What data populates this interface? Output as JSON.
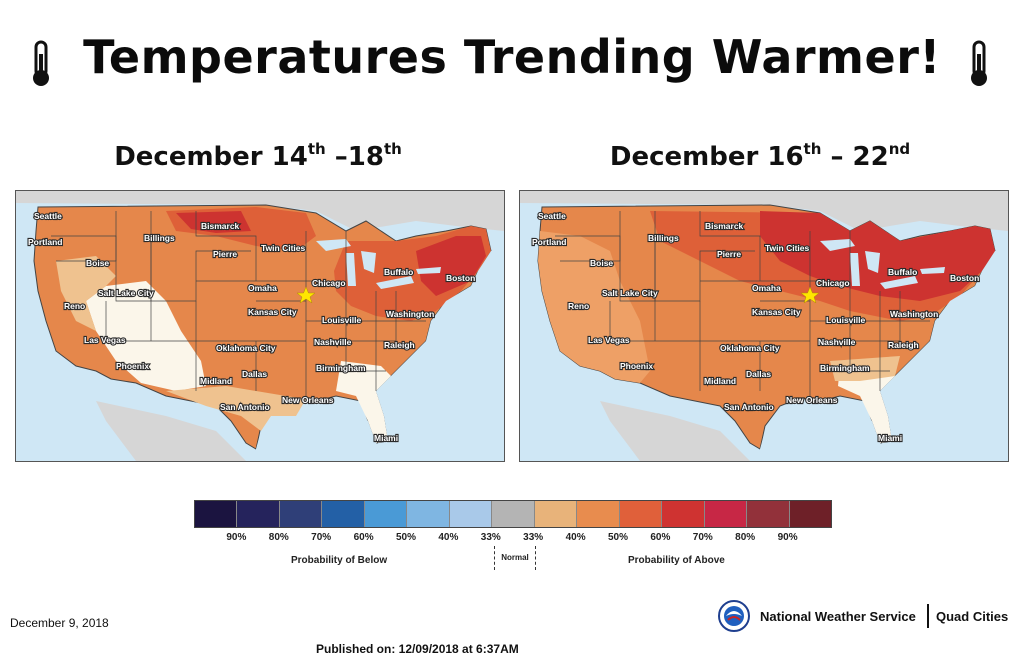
{
  "title": "Temperatures Trending Warmer!",
  "maps": [
    {
      "title_a": "December 14",
      "sup_a": "th",
      "title_b": " –18",
      "sup_b": "th"
    },
    {
      "title_a": "December 16",
      "sup_a": "th",
      "title_b": " – 22",
      "sup_b": "nd"
    }
  ],
  "cities": {
    "seattle": "Seattle",
    "portland": "Portland",
    "boise": "Boise",
    "reno": "Reno",
    "saltlake": "Salt Lake City",
    "lasvegas": "Las Vegas",
    "phoenix": "Phoenix",
    "billings": "Billings",
    "bismarck": "Bismarck",
    "pierre": "Pierre",
    "twincities": "Twin Cities",
    "omaha": "Omaha",
    "chicago": "Chicago",
    "kansascity": "Kansas City",
    "louisville": "Louisville",
    "nashville": "Nashville",
    "okc": "Oklahoma City",
    "dallas": "Dallas",
    "midland": "Midland",
    "sanantonio": "San Antonio",
    "neworleans": "New Orleans",
    "birmingham": "Birmingham",
    "miami": "Miami",
    "buffalo": "Buffalo",
    "boston": "Boston",
    "washington": "Washington",
    "raleigh": "Raleigh"
  },
  "legend": {
    "colors": [
      "#1b1440",
      "#25235c",
      "#2f3f78",
      "#2360a6",
      "#4a9ad6",
      "#7fb6e2",
      "#a9c9e9",
      "#b4b4b4",
      "#e8b37a",
      "#e88c4e",
      "#e0603a",
      "#cf3331",
      "#c72745",
      "#92313a",
      "#6e2028"
    ],
    "ticks": [
      "90%",
      "80%",
      "70%",
      "60%",
      "50%",
      "40%",
      "33%",
      "33%",
      "40%",
      "50%",
      "60%",
      "70%",
      "80%",
      "90%"
    ],
    "below_label": "Probability of Below",
    "above_label": "Probability of Above",
    "normal_label": "Normal"
  },
  "date": "December 9, 2018",
  "nws": {
    "name": "National Weather Service",
    "office": "Quad Cities"
  },
  "published": "Published on: 12/09/2018 at 6:37AM"
}
